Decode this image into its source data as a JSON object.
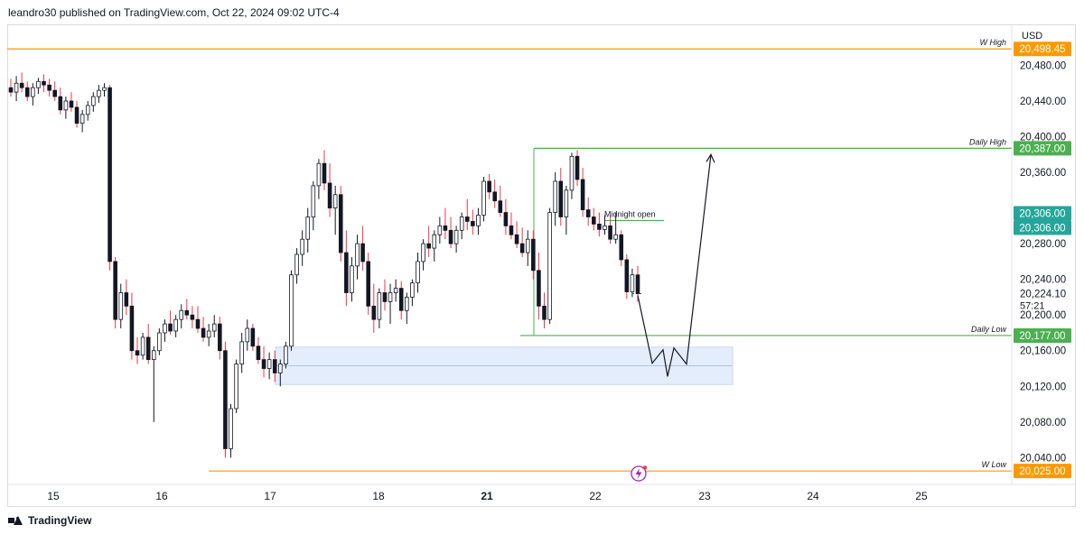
{
  "header": {
    "publisher_line": "leandro30 published on TradingView.com, Oct 22, 2024 09:02 UTC-4"
  },
  "footer": {
    "brand": "TradingView"
  },
  "colors": {
    "up": "#131722",
    "down": "#f23645",
    "orange": "#ff9800",
    "green": "#4caf50",
    "teal": "#26a69a",
    "zone": "#e3edfb"
  },
  "chart_data": {
    "type": "candlestick",
    "currency": "USD",
    "ylim": [
      20010,
      20525
    ],
    "x_ticks": [
      "15",
      "16",
      "17",
      "18",
      "21",
      "22",
      "23",
      "24",
      "25"
    ],
    "y_ticks": [
      "20,480.00",
      "20,440.00",
      "20,400.00",
      "20,360.00",
      "20,280.00",
      "20,240.00",
      "20,200.00",
      "20,160.00",
      "20,120.00",
      "20,080.00",
      "20,040.00"
    ],
    "levels": [
      {
        "name": "W High",
        "value": 20498.45,
        "label": "20,498.45",
        "color": "#ff9800"
      },
      {
        "name": "Daily High",
        "value": 20387.0,
        "label": "20,387.00",
        "color": "#4caf50"
      },
      {
        "name": "Daily Low",
        "value": 20177.0,
        "label": "20,177.00",
        "color": "#4caf50"
      },
      {
        "name": "W Low",
        "value": 20025.0,
        "label": "20,025.00",
        "color": "#ff9800"
      }
    ],
    "midnight_open": {
      "text": "Midnight open",
      "value": 20306.0,
      "label": "20,306.00"
    },
    "extra_price_badge": "20,306.00",
    "last_price": {
      "value": 20224.1,
      "label": "20,224.10",
      "countdown": "57:21"
    },
    "demand_zone": {
      "top": 20164,
      "bottom": 20122
    },
    "projection": [
      20222,
      20146,
      20161,
      20131,
      20163,
      20145,
      20380
    ],
    "candles": [
      [
        20455,
        20465,
        20445,
        20450
      ],
      [
        20450,
        20468,
        20440,
        20460
      ],
      [
        20460,
        20472,
        20450,
        20455
      ],
      [
        20455,
        20462,
        20440,
        20445
      ],
      [
        20445,
        20460,
        20435,
        20455
      ],
      [
        20455,
        20466,
        20448,
        20462
      ],
      [
        20462,
        20470,
        20450,
        20458
      ],
      [
        20458,
        20465,
        20445,
        20452
      ],
      [
        20452,
        20462,
        20440,
        20445
      ],
      [
        20445,
        20455,
        20425,
        20430
      ],
      [
        20430,
        20445,
        20420,
        20440
      ],
      [
        20440,
        20450,
        20428,
        20433
      ],
      [
        20433,
        20440,
        20410,
        20415
      ],
      [
        20415,
        20430,
        20405,
        20425
      ],
      [
        20425,
        20440,
        20418,
        20435
      ],
      [
        20435,
        20450,
        20428,
        20445
      ],
      [
        20445,
        20458,
        20438,
        20452
      ],
      [
        20452,
        20460,
        20445,
        20455
      ],
      [
        20455,
        20458,
        20250,
        20260
      ],
      [
        20260,
        20265,
        20185,
        20195
      ],
      [
        20195,
        20235,
        20185,
        20225
      ],
      [
        20225,
        20240,
        20200,
        20210
      ],
      [
        20210,
        20225,
        20150,
        20160
      ],
      [
        20160,
        20175,
        20145,
        20155
      ],
      [
        20155,
        20180,
        20150,
        20175
      ],
      [
        20175,
        20190,
        20145,
        20150
      ],
      [
        20150,
        20165,
        20080,
        20160
      ],
      [
        20160,
        20185,
        20155,
        20180
      ],
      [
        20180,
        20195,
        20170,
        20190
      ],
      [
        20190,
        20205,
        20178,
        20182
      ],
      [
        20182,
        20200,
        20175,
        20195
      ],
      [
        20195,
        20212,
        20185,
        20205
      ],
      [
        20205,
        20218,
        20195,
        20200
      ],
      [
        20200,
        20210,
        20185,
        20195
      ],
      [
        20195,
        20210,
        20180,
        20185
      ],
      [
        20185,
        20198,
        20170,
        20175
      ],
      [
        20175,
        20190,
        20165,
        20182
      ],
      [
        20182,
        20200,
        20175,
        20190
      ],
      [
        20190,
        20198,
        20150,
        20160
      ],
      [
        20160,
        20170,
        20040,
        20050
      ],
      [
        20050,
        20100,
        20040,
        20095
      ],
      [
        20095,
        20150,
        20090,
        20145
      ],
      [
        20145,
        20180,
        20135,
        20170
      ],
      [
        20170,
        20195,
        20160,
        20185
      ],
      [
        20185,
        20190,
        20160,
        20165
      ],
      [
        20165,
        20175,
        20145,
        20150
      ],
      [
        20150,
        20165,
        20130,
        20140
      ],
      [
        20140,
        20158,
        20128,
        20150
      ],
      [
        20150,
        20160,
        20125,
        20135
      ],
      [
        20135,
        20150,
        20120,
        20145
      ],
      [
        20145,
        20170,
        20140,
        20165
      ],
      [
        20165,
        20250,
        20160,
        20245
      ],
      [
        20245,
        20275,
        20235,
        20268
      ],
      [
        20268,
        20295,
        20255,
        20285
      ],
      [
        20285,
        20320,
        20270,
        20310
      ],
      [
        20310,
        20350,
        20295,
        20345
      ],
      [
        20345,
        20375,
        20330,
        20370
      ],
      [
        20370,
        20385,
        20340,
        20348
      ],
      [
        20348,
        20370,
        20310,
        20320
      ],
      [
        20320,
        20345,
        20290,
        20335
      ],
      [
        20335,
        20345,
        20260,
        20270
      ],
      [
        20270,
        20295,
        20210,
        20225
      ],
      [
        20225,
        20265,
        20215,
        20255
      ],
      [
        20255,
        20290,
        20240,
        20280
      ],
      [
        20280,
        20300,
        20250,
        20260
      ],
      [
        20260,
        20270,
        20200,
        20210
      ],
      [
        20210,
        20235,
        20180,
        20195
      ],
      [
        20195,
        20230,
        20185,
        20225
      ],
      [
        20225,
        20240,
        20205,
        20215
      ],
      [
        20215,
        20235,
        20190,
        20225
      ],
      [
        20225,
        20240,
        20215,
        20230
      ],
      [
        20230,
        20238,
        20195,
        20205
      ],
      [
        20205,
        20225,
        20190,
        20220
      ],
      [
        20220,
        20240,
        20210,
        20236
      ],
      [
        20236,
        20270,
        20225,
        20260
      ],
      [
        20260,
        20285,
        20250,
        20280
      ],
      [
        20280,
        20300,
        20265,
        20275
      ],
      [
        20275,
        20295,
        20260,
        20290
      ],
      [
        20290,
        20310,
        20280,
        20300
      ],
      [
        20300,
        20320,
        20285,
        20295
      ],
      [
        20295,
        20310,
        20275,
        20280
      ],
      [
        20280,
        20300,
        20270,
        20295
      ],
      [
        20295,
        20315,
        20285,
        20310
      ],
      [
        20310,
        20330,
        20295,
        20305
      ],
      [
        20305,
        20318,
        20290,
        20300
      ],
      [
        20300,
        20320,
        20290,
        20312
      ],
      [
        20312,
        20355,
        20305,
        20350
      ],
      [
        20350,
        20358,
        20330,
        20338
      ],
      [
        20338,
        20352,
        20320,
        20328
      ],
      [
        20328,
        20345,
        20310,
        20315
      ],
      [
        20315,
        20330,
        20290,
        20300
      ],
      [
        20300,
        20315,
        20285,
        20290
      ],
      [
        20290,
        20305,
        20275,
        20280
      ],
      [
        20280,
        20298,
        20265,
        20270
      ],
      [
        20270,
        20295,
        20255,
        20285
      ],
      [
        20285,
        20295,
        20240,
        20250
      ],
      [
        20250,
        20270,
        20195,
        20210
      ],
      [
        20210,
        20225,
        20185,
        20195
      ],
      [
        20195,
        20320,
        20190,
        20315
      ],
      [
        20315,
        20360,
        20300,
        20350
      ],
      [
        20350,
        20365,
        20300,
        20310
      ],
      [
        20310,
        20345,
        20290,
        20340
      ],
      [
        20340,
        20382,
        20330,
        20378
      ],
      [
        20378,
        20385,
        20345,
        20352
      ],
      [
        20352,
        20365,
        20310,
        20318
      ],
      [
        20318,
        20332,
        20300,
        20310
      ],
      [
        20310,
        20320,
        20295,
        20302
      ],
      [
        20302,
        20315,
        20288,
        20296
      ],
      [
        20296,
        20312,
        20290,
        20300
      ],
      [
        20300,
        20312,
        20280,
        20285
      ],
      [
        20285,
        20315,
        20280,
        20290
      ],
      [
        20290,
        20295,
        20255,
        20262
      ],
      [
        20262,
        20268,
        20218,
        20226
      ],
      [
        20226,
        20252,
        20220,
        20245
      ],
      [
        20245,
        20255,
        20215,
        20224
      ]
    ]
  }
}
